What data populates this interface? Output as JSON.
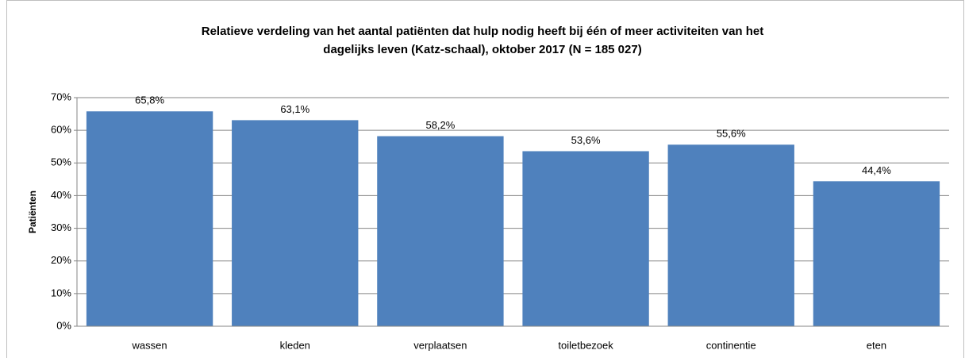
{
  "chart_data": {
    "type": "bar",
    "title": [
      "Relatieve verdeling van het aantal patiënten dat hulp nodig heeft bij één of meer activiteiten van het",
      "dagelijks leven  (Katz-schaal), oktober 2017 (N = 185 027)"
    ],
    "ylabel": "Patiënten",
    "categories": [
      "wassen",
      "kleden",
      "verplaatsen",
      "toiletbezoek",
      "continentie",
      "eten"
    ],
    "values": [
      65.8,
      63.1,
      58.2,
      53.6,
      55.6,
      44.4
    ],
    "value_labels": [
      "65,8%",
      "63,1%",
      "58,2%",
      "53,6%",
      "55,6%",
      "44,4%"
    ],
    "color": "#4f81bd",
    "ylim": [
      0,
      70
    ],
    "yticks": [
      {
        "value": 0,
        "label": "0%"
      },
      {
        "value": 10,
        "label": "10%"
      },
      {
        "value": 20,
        "label": "20%"
      },
      {
        "value": 30,
        "label": "30%"
      },
      {
        "value": 40,
        "label": "40%"
      },
      {
        "value": 50,
        "label": "50%"
      },
      {
        "value": 60,
        "label": "60%"
      },
      {
        "value": 70,
        "label": "70%"
      }
    ],
    "grid": true
  }
}
